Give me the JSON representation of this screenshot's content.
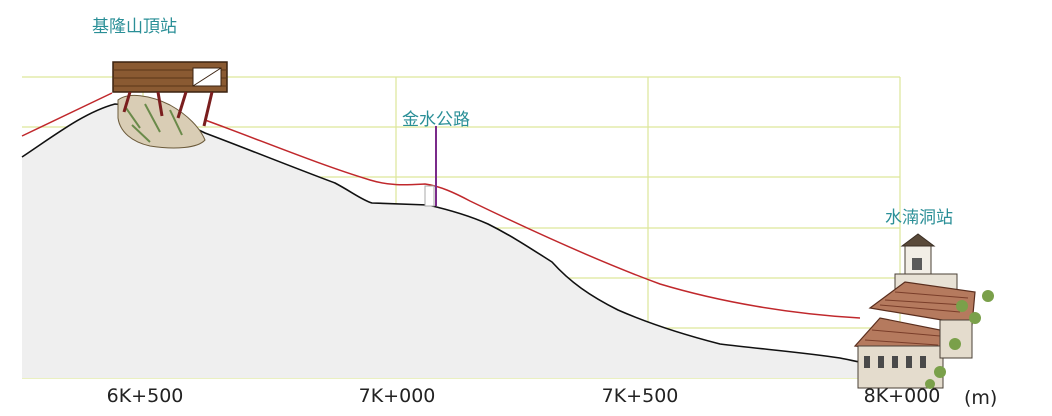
{
  "stations": {
    "top": {
      "name": "基隆山頂站"
    },
    "road": {
      "name": "金水公路"
    },
    "bottom": {
      "name": "水湳洞站"
    }
  },
  "axis": {
    "ticks": [
      "6K+500",
      "7K+000",
      "7K+500",
      "8K+000"
    ],
    "unit": "(m)"
  },
  "colors": {
    "grid": "#dde79a",
    "terrain_fill": "#efefef",
    "terrain_line": "#111111",
    "cable": "#c0282c",
    "label_teal": "#2a8f97",
    "road_marker": "#7a2a8a"
  }
}
